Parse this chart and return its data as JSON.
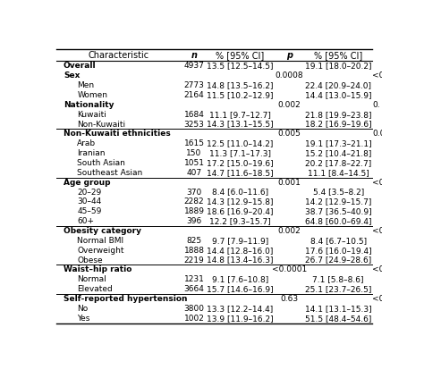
{
  "col_headers": [
    "Characteristic",
    "n",
    "% [95% CI]",
    "p",
    "% [95% CI]"
  ],
  "rows": [
    {
      "label": "Overall",
      "indent": 1,
      "bold": true,
      "n": "4937",
      "ci1": "13.5 [12.5–14.5]",
      "p": "",
      "ci2": "19.1 [18.0–20.2]",
      "p2": "",
      "separator": false
    },
    {
      "label": "Sex",
      "indent": 1,
      "bold": true,
      "n": "",
      "ci1": "",
      "p": "0.0008",
      "ci2": "",
      "p2": "<0",
      "separator": false
    },
    {
      "label": "Men",
      "indent": 2,
      "bold": false,
      "n": "2773",
      "ci1": "14.8 [13.5–16.2]",
      "p": "",
      "ci2": "22.4 [20.9–24.0]",
      "p2": "",
      "separator": false
    },
    {
      "label": "Women",
      "indent": 2,
      "bold": false,
      "n": "2164",
      "ci1": "11.5 [10.2–12.9]",
      "p": "",
      "ci2": "14.4 [13.0–15.9]",
      "p2": "",
      "separator": false
    },
    {
      "label": "Nationality",
      "indent": 1,
      "bold": true,
      "n": "",
      "ci1": "",
      "p": "0.002",
      "ci2": "",
      "p2": "0.",
      "separator": false
    },
    {
      "label": "Kuwaiti",
      "indent": 2,
      "bold": false,
      "n": "1684",
      "ci1": "11.1 [9.7–12.7]",
      "p": "",
      "ci2": "21.8 [19.9–23.8]",
      "p2": "",
      "separator": false
    },
    {
      "label": "Non-Kuwaiti",
      "indent": 2,
      "bold": false,
      "n": "3253",
      "ci1": "14.3 [13.1–15.5]",
      "p": "",
      "ci2": "18.2 [16.9–19.6]",
      "p2": "",
      "separator": true
    },
    {
      "label": "Non-Kuwaiti ethnicities",
      "indent": 1,
      "bold": true,
      "n": "",
      "ci1": "",
      "p": "0.005",
      "ci2": "",
      "p2": "0.0",
      "separator": false
    },
    {
      "label": "Arab",
      "indent": 2,
      "bold": false,
      "n": "1615",
      "ci1": "12.5 [11.0–14.2]",
      "p": "",
      "ci2": "19.1 [17.3–21.1]",
      "p2": "",
      "separator": false
    },
    {
      "label": "Iranian",
      "indent": 2,
      "bold": false,
      "n": "150",
      "ci1": "11.3 [7.1–17.3]",
      "p": "",
      "ci2": "15.2 [10.4–21.8]",
      "p2": "",
      "separator": false
    },
    {
      "label": "South Asian",
      "indent": 2,
      "bold": false,
      "n": "1051",
      "ci1": "17.2 [15.0–19.6]",
      "p": "",
      "ci2": "20.2 [17.8–22.7]",
      "p2": "",
      "separator": false
    },
    {
      "label": "Southeast Asian",
      "indent": 2,
      "bold": false,
      "n": "407",
      "ci1": "14.7 [11.6–18.5]",
      "p": "",
      "ci2": "11.1 [8.4–14.5]",
      "p2": "",
      "separator": true
    },
    {
      "label": "Age group",
      "indent": 1,
      "bold": true,
      "n": "",
      "ci1": "",
      "p": "0.001",
      "ci2": "",
      "p2": "<0",
      "separator": false
    },
    {
      "label": "20–29",
      "indent": 2,
      "bold": false,
      "n": "370",
      "ci1": "8.4 [6.0–11.6]",
      "p": "",
      "ci2": "5.4 [3.5–8.2]",
      "p2": "",
      "separator": false
    },
    {
      "label": "30–44",
      "indent": 2,
      "bold": false,
      "n": "2282",
      "ci1": "14.3 [12.9–15.8]",
      "p": "",
      "ci2": "14.2 [12.9–15.7]",
      "p2": "",
      "separator": false
    },
    {
      "label": "45–59",
      "indent": 2,
      "bold": false,
      "n": "1889",
      "ci1": "18.6 [16.9–20.4]",
      "p": "",
      "ci2": "38.7 [36.5–40.9]",
      "p2": "",
      "separator": false
    },
    {
      "label": "60+",
      "indent": 2,
      "bold": false,
      "n": "396",
      "ci1": "12.2 [9.3–15.7]",
      "p": "",
      "ci2": "64.8 [60.0–69.4]",
      "p2": "",
      "separator": true
    },
    {
      "label": "Obesity category",
      "indent": 1,
      "bold": true,
      "n": "",
      "ci1": "",
      "p": "0.002",
      "ci2": "",
      "p2": "<0",
      "separator": false
    },
    {
      "label": "Normal BMI",
      "indent": 2,
      "bold": false,
      "n": "825",
      "ci1": "9.7 [7.9–11.9]",
      "p": "",
      "ci2": "8.4 [6.7–10.5]",
      "p2": "",
      "separator": false
    },
    {
      "label": "Overweight",
      "indent": 2,
      "bold": false,
      "n": "1888",
      "ci1": "14.4 [12.8–16.0]",
      "p": "",
      "ci2": "17.6 [16.0–19.4]",
      "p2": "",
      "separator": false
    },
    {
      "label": "Obese",
      "indent": 2,
      "bold": false,
      "n": "2219",
      "ci1": "14.8 [13.4–16.3]",
      "p": "",
      "ci2": "26.7 [24.9–28.6]",
      "p2": "",
      "separator": true
    },
    {
      "label": "Waist–hip ratio",
      "indent": 1,
      "bold": true,
      "n": "",
      "ci1": "",
      "p": "<0.0001",
      "ci2": "",
      "p2": "<0",
      "separator": false
    },
    {
      "label": "Normal",
      "indent": 2,
      "bold": false,
      "n": "1231",
      "ci1": "9.1 [7.6–10.8]",
      "p": "",
      "ci2": "7.1 [5.8–8.6]",
      "p2": "",
      "separator": false
    },
    {
      "label": "Elevated",
      "indent": 2,
      "bold": false,
      "n": "3664",
      "ci1": "15.7 [14.6–16.9]",
      "p": "",
      "ci2": "25.1 [23.7–26.5]",
      "p2": "",
      "separator": true
    },
    {
      "label": "Self-reported hypertension",
      "indent": 1,
      "bold": true,
      "n": "",
      "ci1": "",
      "p": "0.63",
      "ci2": "",
      "p2": "<0",
      "separator": false
    },
    {
      "label": "No",
      "indent": 2,
      "bold": false,
      "n": "3800",
      "ci1": "13.3 [12.2–14.4]",
      "p": "",
      "ci2": "14.1 [13.1–15.3]",
      "p2": "",
      "separator": false
    },
    {
      "label": "Yes",
      "indent": 2,
      "bold": false,
      "n": "1002",
      "ci1": "13.9 [11.9–16.2]",
      "p": "",
      "ci2": "51.5 [48.4–54.6]",
      "p2": "",
      "separator": false
    }
  ],
  "font_size": 6.5,
  "header_font_size": 7.0,
  "figsize": [
    4.74,
    4.23
  ],
  "dpi": 100
}
